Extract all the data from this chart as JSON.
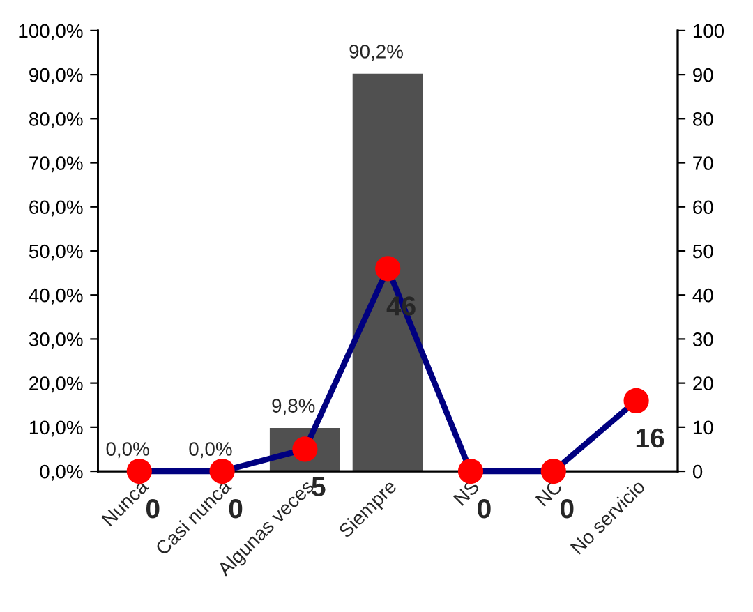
{
  "chart_data": {
    "type": "bar",
    "categories": [
      "Nunca",
      "Casi nunca",
      "Algunas veces",
      "Siempre",
      "NS",
      "NC",
      "No servicio"
    ],
    "series": [
      {
        "color": "#505050",
        "values": [
          0,
          0,
          9.8,
          90.2,
          null,
          null,
          null
        ],
        "value_labels": [
          "0,0%",
          "0,0%",
          "9,8%",
          "90,2%",
          null,
          null,
          null
        ]
      },
      {
        "type": "line",
        "axis": "y2",
        "color": "#000080",
        "colors": [
          "#ff0000",
          "#ff0000",
          "#ff0000",
          "#ff0000",
          "#ff0000",
          "#ff0000",
          "#ff0000"
        ],
        "marker": "circle",
        "line_style": "solid",
        "values": [
          0,
          0,
          5,
          46,
          0,
          0,
          16
        ],
        "value_labels": [
          "0",
          "0",
          "5",
          "46",
          "0",
          "0",
          "16"
        ]
      }
    ],
    "ylim": [
      0,
      100
    ],
    "yticks": [
      {
        "value": 0,
        "label": "0,0%"
      },
      {
        "value": 10,
        "label": "10,0%"
      },
      {
        "value": 20,
        "label": "20,0%"
      },
      {
        "value": 30,
        "label": "30,0%"
      },
      {
        "value": 40,
        "label": "40,0%"
      },
      {
        "value": 50,
        "label": "50,0%"
      },
      {
        "value": 60,
        "label": "60,0%"
      },
      {
        "value": 70,
        "label": "70,0%"
      },
      {
        "value": 80,
        "label": "80,0%"
      },
      {
        "value": 90,
        "label": "90,0%"
      },
      {
        "value": 100,
        "label": "100,0%"
      }
    ],
    "y2lim": [
      0,
      100
    ],
    "y2ticks": [
      0,
      10,
      20,
      30,
      40,
      50,
      60,
      70,
      80,
      90,
      100
    ],
    "grid": false
  }
}
